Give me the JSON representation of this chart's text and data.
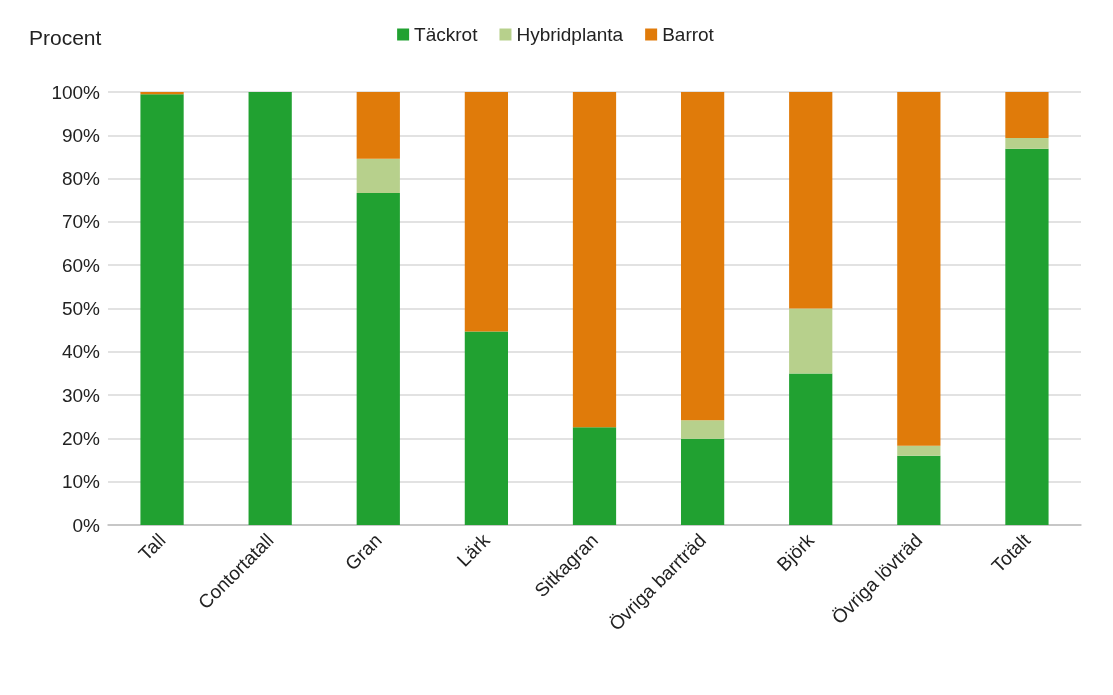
{
  "chart_data": {
    "type": "bar",
    "title": "Procent",
    "stacked": true,
    "legend": "top",
    "grid": "y",
    "categories": [
      "Tall",
      "Contortatall",
      "Gran",
      "Lärk",
      "Sitkagran",
      "Övriga barrträd",
      "Björk",
      "Övriga lövträd",
      "Totalt"
    ],
    "series": [
      {
        "name": "Täckrot",
        "color": "#21a131",
        "values": [
          99.5,
          100,
          76.7,
          44.7,
          22.6,
          19.9,
          35,
          16,
          86.9
        ]
      },
      {
        "name": "Hybridplanta",
        "color": "#b7d08c",
        "values": [
          0,
          0,
          7.9,
          0,
          0,
          4.3,
          15,
          2.3,
          2.5
        ]
      },
      {
        "name": "Barrot",
        "color": "#e07b0a",
        "values": [
          0.5,
          0,
          15.4,
          55.3,
          77.4,
          75.8,
          50,
          81.7,
          10.6
        ]
      }
    ],
    "ylim": [
      0,
      100
    ],
    "yticks": [
      {
        "value": 0,
        "label": "0%"
      },
      {
        "value": 10,
        "label": "10%"
      },
      {
        "value": 20,
        "label": "20%"
      },
      {
        "value": 30,
        "label": "30%"
      },
      {
        "value": 40,
        "label": "40%"
      },
      {
        "value": 50,
        "label": "50%"
      },
      {
        "value": 60,
        "label": "60%"
      },
      {
        "value": 70,
        "label": "70%"
      },
      {
        "value": 80,
        "label": "80%"
      },
      {
        "value": 90,
        "label": "90%"
      },
      {
        "value": 100,
        "label": "100%"
      }
    ]
  }
}
